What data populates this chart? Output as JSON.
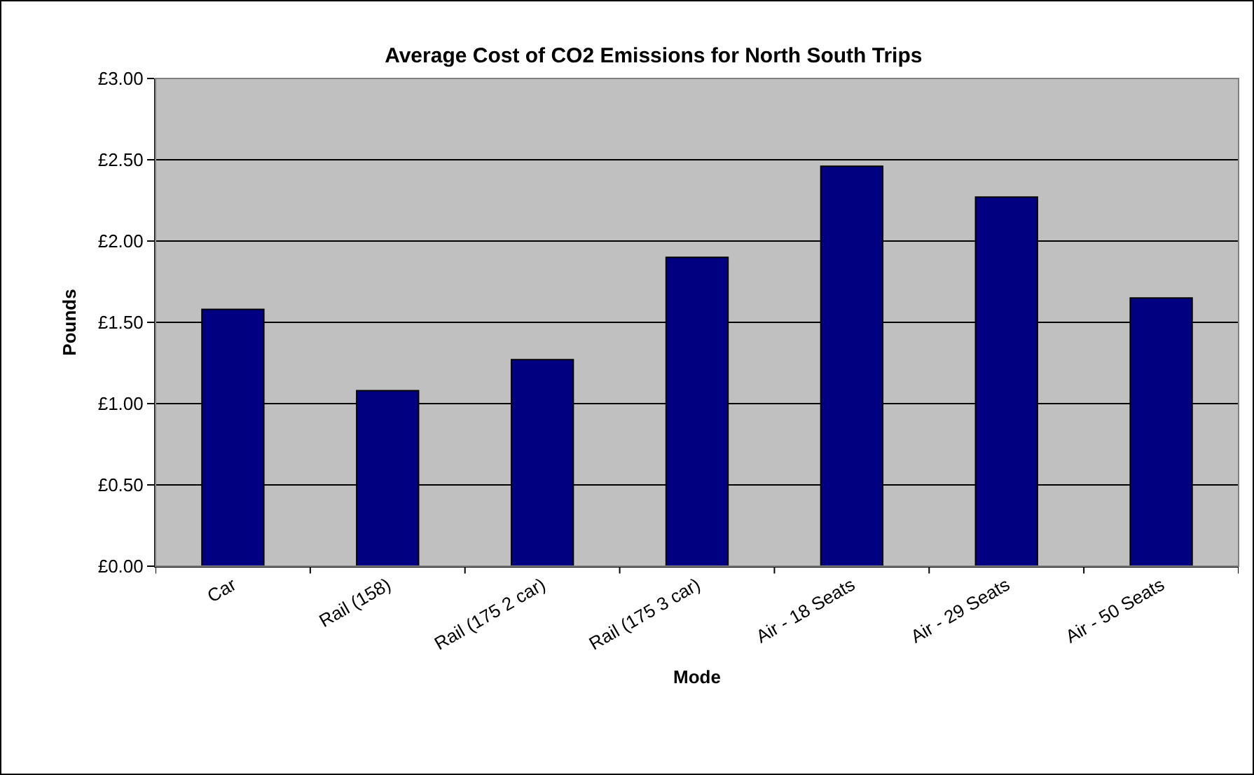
{
  "chart_data": {
    "type": "bar",
    "title": "Average Cost of CO2 Emissions for North South Trips",
    "xlabel": "Mode",
    "ylabel": "Pounds",
    "categories": [
      "Car",
      "Rail (158)",
      "Rail (175 2 car)",
      "Rail (175 3 car)",
      "Air - 18 Seats",
      "Air - 29 Seats",
      "Air - 50 Seats"
    ],
    "values": [
      1.58,
      1.08,
      1.27,
      1.9,
      2.46,
      2.27,
      1.65
    ],
    "color": "#000080",
    "ylim": [
      0,
      3
    ],
    "yticks": [
      {
        "value": 0,
        "label": "£0.00"
      },
      {
        "value": 0.5,
        "label": "£0.50"
      },
      {
        "value": 1,
        "label": "£1.00"
      },
      {
        "value": 1.5,
        "label": "£1.50"
      },
      {
        "value": 2,
        "label": "£2.00"
      },
      {
        "value": 2.5,
        "label": "£2.50"
      },
      {
        "value": 3,
        "label": "£3.00"
      }
    ],
    "grid": "y",
    "legend": false
  }
}
